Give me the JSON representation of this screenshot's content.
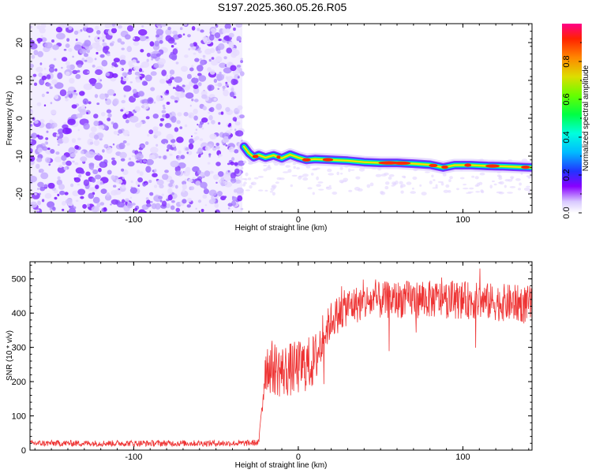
{
  "title": "S197.2025.360.05.26.R05",
  "chart_data": [
    {
      "type": "heatmap",
      "name": "spectrogram",
      "xlabel": "Height of straight line (km)",
      "ylabel": "Frequency (Hz)",
      "xlim": [
        -163,
        142
      ],
      "ylim": [
        -25,
        25
      ],
      "xticks": [
        -100,
        0,
        100
      ],
      "yticks": [
        -20,
        -10,
        0,
        10,
        20
      ],
      "noise_region_x": [
        -163,
        -34
      ],
      "signal_track": [
        {
          "x": -33,
          "y": -7.5
        },
        {
          "x": -30,
          "y": -9.2
        },
        {
          "x": -27,
          "y": -10.3
        },
        {
          "x": -24,
          "y": -9.7
        },
        {
          "x": -20,
          "y": -10.4
        },
        {
          "x": -15,
          "y": -9.8
        },
        {
          "x": -10,
          "y": -10.6
        },
        {
          "x": -5,
          "y": -9.6
        },
        {
          "x": 0,
          "y": -10.4
        },
        {
          "x": 5,
          "y": -11.0
        },
        {
          "x": 10,
          "y": -10.8
        },
        {
          "x": 20,
          "y": -11.0
        },
        {
          "x": 30,
          "y": -11.2
        },
        {
          "x": 40,
          "y": -11.6
        },
        {
          "x": 50,
          "y": -11.8
        },
        {
          "x": 60,
          "y": -11.8
        },
        {
          "x": 70,
          "y": -12.0
        },
        {
          "x": 80,
          "y": -12.3
        },
        {
          "x": 88,
          "y": -13.0
        },
        {
          "x": 95,
          "y": -12.4
        },
        {
          "x": 105,
          "y": -12.4
        },
        {
          "x": 115,
          "y": -12.6
        },
        {
          "x": 125,
          "y": -12.7
        },
        {
          "x": 135,
          "y": -12.9
        },
        {
          "x": 142,
          "y": -13.0
        }
      ],
      "colorbar": {
        "label": "Normalized spectral amplitude",
        "ticks": [
          "0.0",
          "0.2",
          "0.4",
          "0.6",
          "0.8"
        ],
        "tick_values": [
          0.0,
          0.2,
          0.4,
          0.6,
          0.8
        ],
        "range": [
          0,
          1
        ]
      }
    },
    {
      "type": "line",
      "name": "snr",
      "xlabel": "Height of straight line (km)",
      "ylabel": "SNR (10 * v/v)",
      "xlim": [
        -163,
        142
      ],
      "ylim": [
        0,
        550
      ],
      "xticks": [
        -100,
        0,
        100
      ],
      "yticks": [
        0,
        100,
        200,
        300,
        400,
        500
      ],
      "color": "#ee3333",
      "envelope": [
        {
          "x": -163,
          "y": 20
        },
        {
          "x": -34,
          "y": 20
        },
        {
          "x": -24,
          "y": 22
        },
        {
          "x": -20,
          "y": 250
        },
        {
          "x": -10,
          "y": 230
        },
        {
          "x": 0,
          "y": 240
        },
        {
          "x": 10,
          "y": 260
        },
        {
          "x": 15,
          "y": 330
        },
        {
          "x": 20,
          "y": 380
        },
        {
          "x": 30,
          "y": 420
        },
        {
          "x": 45,
          "y": 435
        },
        {
          "x": 60,
          "y": 440
        },
        {
          "x": 80,
          "y": 440
        },
        {
          "x": 100,
          "y": 438
        },
        {
          "x": 120,
          "y": 432
        },
        {
          "x": 142,
          "y": 425
        }
      ]
    }
  ]
}
